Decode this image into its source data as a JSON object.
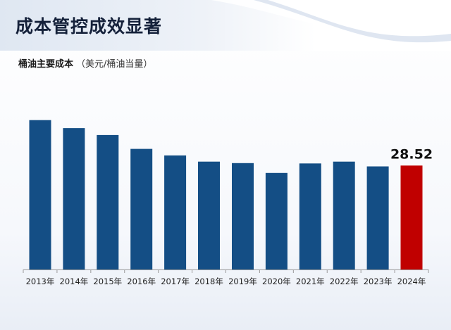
{
  "header": {
    "title": "成本管控成效显著"
  },
  "chart_data": {
    "type": "bar",
    "title": "桶油主要成本",
    "unit": "（美元/桶油当量）",
    "categories": [
      "2013年",
      "2014年",
      "2015年",
      "2016年",
      "2017年",
      "2018年",
      "2019年",
      "2020年",
      "2021年",
      "2022年",
      "2023年",
      "2024年"
    ],
    "values": [
      41.0,
      38.8,
      36.9,
      33.1,
      31.3,
      29.6,
      29.2,
      26.5,
      29.1,
      29.6,
      28.3,
      28.52
    ],
    "data_labels": [
      {
        "index": 11,
        "text": "28.52"
      }
    ],
    "ylim": [
      0,
      45
    ],
    "colors": {
      "bar": "#144e85",
      "highlight": "#c00000",
      "axis": "#9a9a9a"
    },
    "highlight_index": 11,
    "grid": false,
    "legend": "none"
  }
}
